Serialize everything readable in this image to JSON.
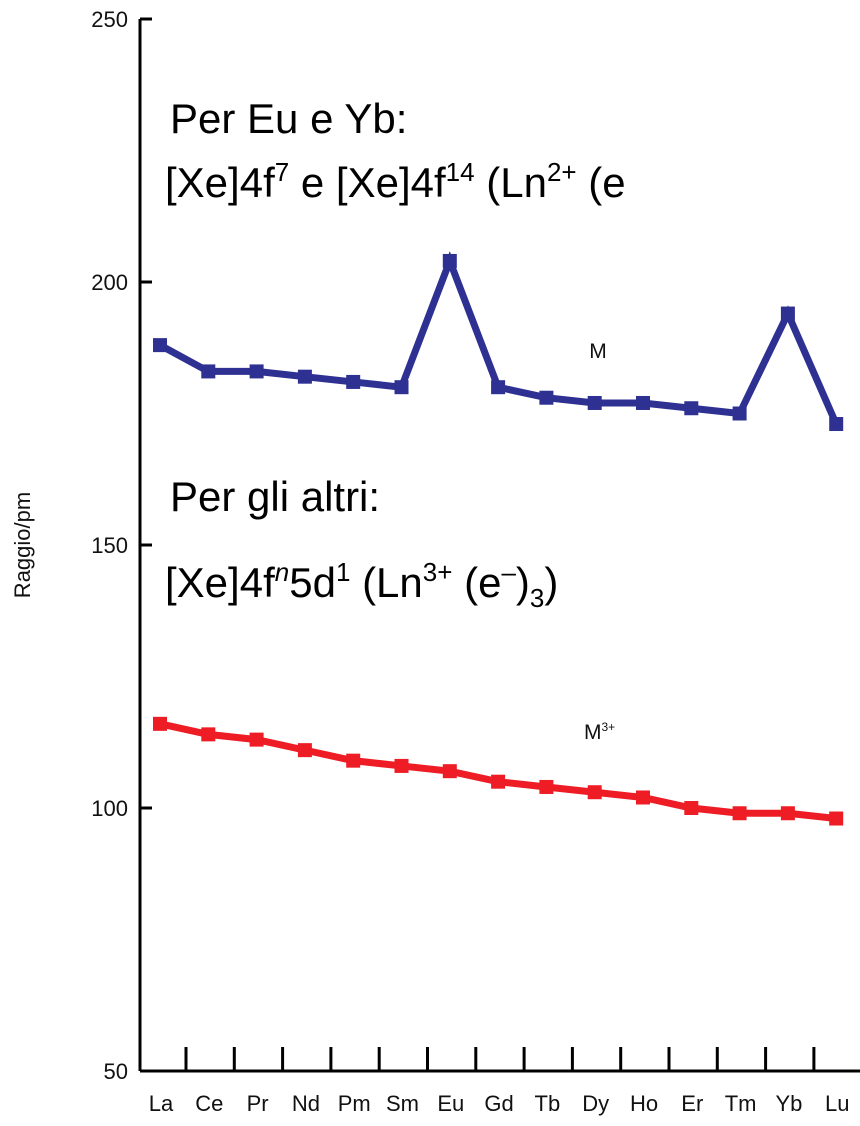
{
  "chart_data": {
    "type": "line",
    "categories": [
      "La",
      "Ce",
      "Pr",
      "Nd",
      "Pm",
      "Sm",
      "Eu",
      "Gd",
      "Tb",
      "Dy",
      "Ho",
      "Er",
      "Tm",
      "Yb",
      "Lu"
    ],
    "ylabel": "Raggio/pm",
    "ylim": [
      50,
      250
    ],
    "yticks": [
      "50",
      "100",
      "150",
      "200",
      "250"
    ],
    "grid": false,
    "series": [
      {
        "name": "M",
        "color": "#2e3192",
        "values": [
          188,
          183,
          183,
          182,
          181,
          180,
          204,
          180,
          178,
          177,
          177,
          176,
          175,
          194,
          173
        ]
      },
      {
        "name": "M",
        "superscript": "3+",
        "color": "#ee1c25",
        "values": [
          116,
          114,
          113,
          111,
          109,
          108,
          107,
          105,
          104,
          103,
          102,
          100,
          99,
          99,
          98
        ]
      }
    ]
  },
  "annotations": {
    "eu_yb_title": "Per Eu e Yb:",
    "eu_yb": {
      "part1": "[Xe]4f",
      "sup1": "7",
      "part2": " e [Xe]4f",
      "sup2": "14",
      "part3": " (Ln",
      "sup3": "2+",
      "part4": " (e"
    },
    "others_title": "Per gli altri:",
    "others": {
      "part1": "[Xe]4f",
      "sup_n": "n",
      "part2": "5d",
      "sup1": "1",
      "part3": " (Ln",
      "sup3": "3+",
      "part4": " (e",
      "sup4": "–",
      "part5": ")",
      "sub5": "3",
      "part6": ")"
    }
  }
}
